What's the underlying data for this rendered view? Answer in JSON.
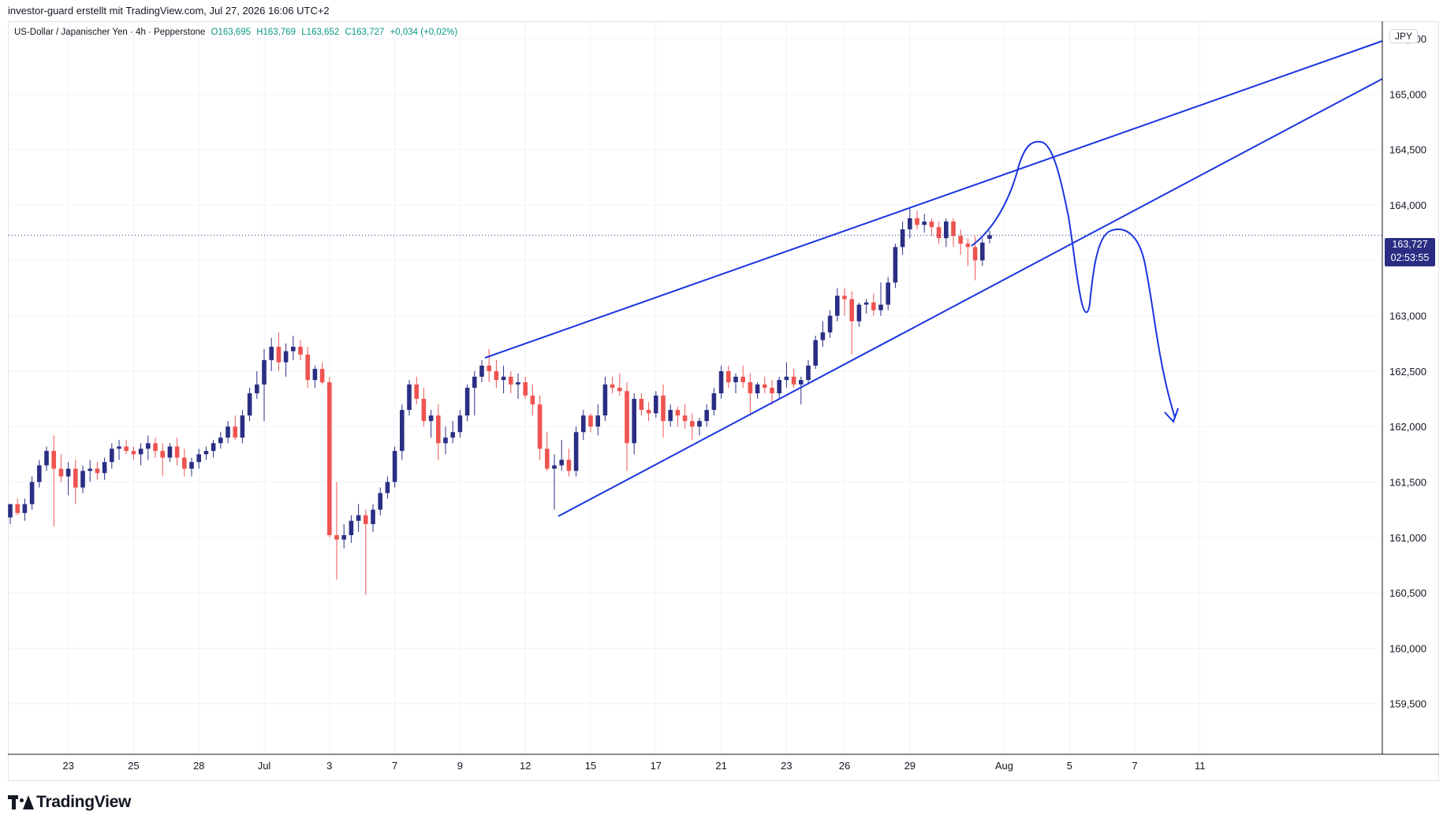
{
  "header": {
    "attribution": "investor-guard erstellt mit TradingView.com, Jul 27, 2026 16:06 UTC+2"
  },
  "legend": {
    "symbol": "US-Dollar / Japanischer Yen · 4h · Pepperstone",
    "open": "O163,695",
    "high": "H163,769",
    "low": "L163,652",
    "close": "C163,727",
    "change": "+0,034 (+0,02%)"
  },
  "price_axis": {
    "currency": "JPY",
    "last_price": "163,727",
    "countdown": "02:53:55"
  },
  "brand": {
    "name": "TradingView"
  },
  "colors": {
    "up": "#2a2e83",
    "down": "#ef5350",
    "drawing": "#1a35e0",
    "grid": "#f0f3fa"
  },
  "chart_data": {
    "type": "candlestick",
    "ylim": [
      159.05,
      165.65
    ],
    "yticks": [
      "159,500",
      "160,000",
      "160,500",
      "161,000",
      "161,500",
      "162,000",
      "162,500",
      "163,000",
      "163,500",
      "164,000",
      "164,500",
      "165,000",
      "165,500"
    ],
    "ytick_values": [
      159.5,
      160,
      160.5,
      161,
      161.5,
      162,
      162.5,
      163,
      163.5,
      164,
      164.5,
      165,
      165.5
    ],
    "xticks": [
      {
        "label": "23",
        "i": 8
      },
      {
        "label": "25",
        "i": 17
      },
      {
        "label": "28",
        "i": 26
      },
      {
        "label": "Jul",
        "i": 35
      },
      {
        "label": "3",
        "i": 44
      },
      {
        "label": "7",
        "i": 53
      },
      {
        "label": "9",
        "i": 62
      },
      {
        "label": "12",
        "i": 71
      },
      {
        "label": "15",
        "i": 80
      },
      {
        "label": "17",
        "i": 89
      },
      {
        "label": "21",
        "i": 98
      },
      {
        "label": "23",
        "i": 107
      },
      {
        "label": "26",
        "i": 115
      },
      {
        "label": "29",
        "i": 124
      },
      {
        "label": "Aug",
        "i": 137
      },
      {
        "label": "5",
        "i": 146
      },
      {
        "label": "7",
        "i": 155
      },
      {
        "label": "11",
        "i": 164
      }
    ],
    "candles": [
      [
        161.18,
        161.3,
        161.12,
        161.3
      ],
      [
        161.3,
        161.35,
        161.2,
        161.22
      ],
      [
        161.22,
        161.35,
        161.15,
        161.3
      ],
      [
        161.3,
        161.55,
        161.25,
        161.5
      ],
      [
        161.5,
        161.7,
        161.45,
        161.65
      ],
      [
        161.65,
        161.82,
        161.6,
        161.78
      ],
      [
        161.78,
        161.92,
        161.1,
        161.62
      ],
      [
        161.62,
        161.75,
        161.5,
        161.55
      ],
      [
        161.55,
        161.68,
        161.38,
        161.62
      ],
      [
        161.62,
        161.7,
        161.3,
        161.45
      ],
      [
        161.45,
        161.65,
        161.4,
        161.6
      ],
      [
        161.6,
        161.7,
        161.5,
        161.62
      ],
      [
        161.62,
        161.68,
        161.52,
        161.58
      ],
      [
        161.58,
        161.72,
        161.52,
        161.68
      ],
      [
        161.68,
        161.85,
        161.62,
        161.8
      ],
      [
        161.8,
        161.88,
        161.7,
        161.82
      ],
      [
        161.82,
        161.88,
        161.75,
        161.78
      ],
      [
        161.78,
        161.82,
        161.7,
        161.75
      ],
      [
        161.75,
        161.85,
        161.65,
        161.8
      ],
      [
        161.8,
        161.92,
        161.7,
        161.85
      ],
      [
        161.85,
        161.9,
        161.72,
        161.78
      ],
      [
        161.78,
        161.85,
        161.55,
        161.72
      ],
      [
        161.72,
        161.85,
        161.68,
        161.82
      ],
      [
        161.82,
        161.9,
        161.65,
        161.72
      ],
      [
        161.72,
        161.8,
        161.55,
        161.62
      ],
      [
        161.62,
        161.72,
        161.55,
        161.68
      ],
      [
        161.68,
        161.8,
        161.62,
        161.75
      ],
      [
        161.75,
        161.82,
        161.7,
        161.78
      ],
      [
        161.78,
        161.88,
        161.72,
        161.85
      ],
      [
        161.85,
        161.95,
        161.8,
        161.9
      ],
      [
        161.9,
        162.05,
        161.85,
        162.0
      ],
      [
        162.0,
        162.1,
        161.88,
        161.9
      ],
      [
        161.9,
        162.15,
        161.85,
        162.1
      ],
      [
        162.1,
        162.35,
        162.05,
        162.3
      ],
      [
        162.3,
        162.5,
        162.25,
        162.38
      ],
      [
        162.38,
        162.7,
        162.05,
        162.6
      ],
      [
        162.6,
        162.8,
        162.5,
        162.72
      ],
      [
        162.72,
        162.85,
        162.5,
        162.58
      ],
      [
        162.58,
        162.75,
        162.45,
        162.68
      ],
      [
        162.68,
        162.82,
        162.6,
        162.72
      ],
      [
        162.72,
        162.78,
        162.6,
        162.65
      ],
      [
        162.65,
        162.72,
        162.35,
        162.42
      ],
      [
        162.42,
        162.55,
        162.35,
        162.52
      ],
      [
        162.52,
        162.58,
        162.38,
        162.4
      ],
      [
        162.4,
        162.45,
        161.0,
        161.02
      ],
      [
        161.02,
        161.5,
        160.62,
        160.98
      ],
      [
        160.98,
        161.12,
        160.9,
        161.02
      ],
      [
        161.02,
        161.2,
        160.95,
        161.15
      ],
      [
        161.15,
        161.3,
        161.05,
        161.2
      ],
      [
        161.2,
        161.25,
        160.48,
        161.12
      ],
      [
        161.12,
        161.3,
        161.05,
        161.25
      ],
      [
        161.25,
        161.45,
        161.2,
        161.4
      ],
      [
        161.4,
        161.55,
        161.35,
        161.5
      ],
      [
        161.5,
        161.82,
        161.45,
        161.78
      ],
      [
        161.78,
        162.2,
        161.7,
        162.15
      ],
      [
        162.15,
        162.42,
        162.1,
        162.38
      ],
      [
        162.38,
        162.45,
        162.2,
        162.25
      ],
      [
        162.25,
        162.35,
        162.0,
        162.05
      ],
      [
        162.05,
        162.15,
        161.9,
        162.1
      ],
      [
        162.1,
        162.2,
        161.7,
        161.85
      ],
      [
        161.85,
        162.0,
        161.75,
        161.9
      ],
      [
        161.9,
        162.05,
        161.85,
        161.95
      ],
      [
        161.95,
        162.15,
        161.9,
        162.1
      ],
      [
        162.1,
        162.38,
        162.05,
        162.35
      ],
      [
        162.35,
        162.5,
        162.1,
        162.45
      ],
      [
        162.45,
        162.6,
        162.4,
        162.55
      ],
      [
        162.55,
        162.7,
        162.4,
        162.5
      ],
      [
        162.5,
        162.6,
        162.35,
        162.42
      ],
      [
        162.42,
        162.55,
        162.3,
        162.45
      ],
      [
        162.45,
        162.5,
        162.3,
        162.38
      ],
      [
        162.38,
        162.48,
        162.25,
        162.4
      ],
      [
        162.4,
        162.45,
        162.25,
        162.28
      ],
      [
        162.28,
        162.38,
        162.1,
        162.2
      ],
      [
        162.2,
        162.28,
        161.7,
        161.8
      ],
      [
        161.8,
        161.95,
        161.6,
        161.62
      ],
      [
        161.62,
        161.75,
        161.25,
        161.65
      ],
      [
        161.65,
        161.88,
        161.6,
        161.7
      ],
      [
        161.7,
        161.8,
        161.55,
        161.6
      ],
      [
        161.6,
        162.0,
        161.55,
        161.95
      ],
      [
        161.95,
        162.15,
        161.88,
        162.1
      ],
      [
        162.1,
        162.12,
        161.95,
        162.0
      ],
      [
        162.0,
        162.2,
        161.92,
        162.1
      ],
      [
        162.1,
        162.45,
        162.05,
        162.38
      ],
      [
        162.38,
        162.45,
        162.3,
        162.35
      ],
      [
        162.35,
        162.48,
        162.28,
        162.32
      ],
      [
        162.32,
        162.4,
        161.6,
        161.85
      ],
      [
        161.85,
        162.3,
        161.75,
        162.25
      ],
      [
        162.25,
        162.3,
        162.1,
        162.15
      ],
      [
        162.15,
        162.22,
        162.05,
        162.12
      ],
      [
        162.12,
        162.32,
        162.08,
        162.28
      ],
      [
        162.28,
        162.38,
        161.9,
        162.05
      ],
      [
        162.05,
        162.2,
        162.0,
        162.15
      ],
      [
        162.15,
        162.18,
        162.0,
        162.1
      ],
      [
        162.1,
        162.2,
        161.98,
        162.05
      ],
      [
        162.05,
        162.12,
        161.88,
        162.0
      ],
      [
        162.0,
        162.08,
        161.92,
        162.05
      ],
      [
        162.05,
        162.2,
        162.0,
        162.15
      ],
      [
        162.15,
        162.35,
        162.1,
        162.3
      ],
      [
        162.3,
        162.55,
        162.25,
        162.5
      ],
      [
        162.5,
        162.55,
        162.35,
        162.4
      ],
      [
        162.4,
        162.48,
        162.3,
        162.45
      ],
      [
        162.45,
        162.55,
        162.35,
        162.4
      ],
      [
        162.4,
        162.48,
        162.1,
        162.3
      ],
      [
        162.3,
        162.4,
        162.25,
        162.38
      ],
      [
        162.38,
        162.45,
        162.3,
        162.35
      ],
      [
        162.35,
        162.42,
        162.2,
        162.3
      ],
      [
        162.3,
        162.45,
        162.25,
        162.42
      ],
      [
        162.42,
        162.58,
        162.35,
        162.45
      ],
      [
        162.45,
        162.52,
        162.35,
        162.38
      ],
      [
        162.38,
        162.45,
        162.2,
        162.42
      ],
      [
        162.42,
        162.6,
        162.38,
        162.55
      ],
      [
        162.55,
        162.82,
        162.52,
        162.78
      ],
      [
        162.78,
        162.95,
        162.72,
        162.85
      ],
      [
        162.85,
        163.05,
        162.8,
        163.0
      ],
      [
        163.0,
        163.25,
        162.95,
        163.18
      ],
      [
        163.18,
        163.25,
        163.0,
        163.15
      ],
      [
        163.15,
        163.22,
        162.65,
        162.95
      ],
      [
        162.95,
        163.12,
        162.9,
        163.1
      ],
      [
        163.1,
        163.15,
        163.02,
        163.12
      ],
      [
        163.12,
        163.2,
        163.0,
        163.05
      ],
      [
        163.05,
        163.3,
        163.0,
        163.1
      ],
      [
        163.1,
        163.35,
        163.05,
        163.3
      ],
      [
        163.3,
        163.65,
        163.25,
        163.62
      ],
      [
        163.62,
        163.85,
        163.55,
        163.78
      ],
      [
        163.78,
        163.98,
        163.7,
        163.88
      ],
      [
        163.88,
        163.95,
        163.78,
        163.82
      ],
      [
        163.82,
        163.92,
        163.75,
        163.85
      ],
      [
        163.85,
        163.88,
        163.72,
        163.8
      ],
      [
        163.8,
        163.85,
        163.65,
        163.7
      ],
      [
        163.7,
        163.88,
        163.62,
        163.85
      ],
      [
        163.85,
        163.88,
        163.62,
        163.72
      ],
      [
        163.72,
        163.78,
        163.55,
        163.65
      ],
      [
        163.65,
        163.7,
        163.45,
        163.62
      ],
      [
        163.62,
        163.72,
        163.32,
        163.5
      ],
      [
        163.5,
        163.7,
        163.45,
        163.66
      ],
      [
        163.695,
        163.769,
        163.652,
        163.727
      ]
    ]
  }
}
